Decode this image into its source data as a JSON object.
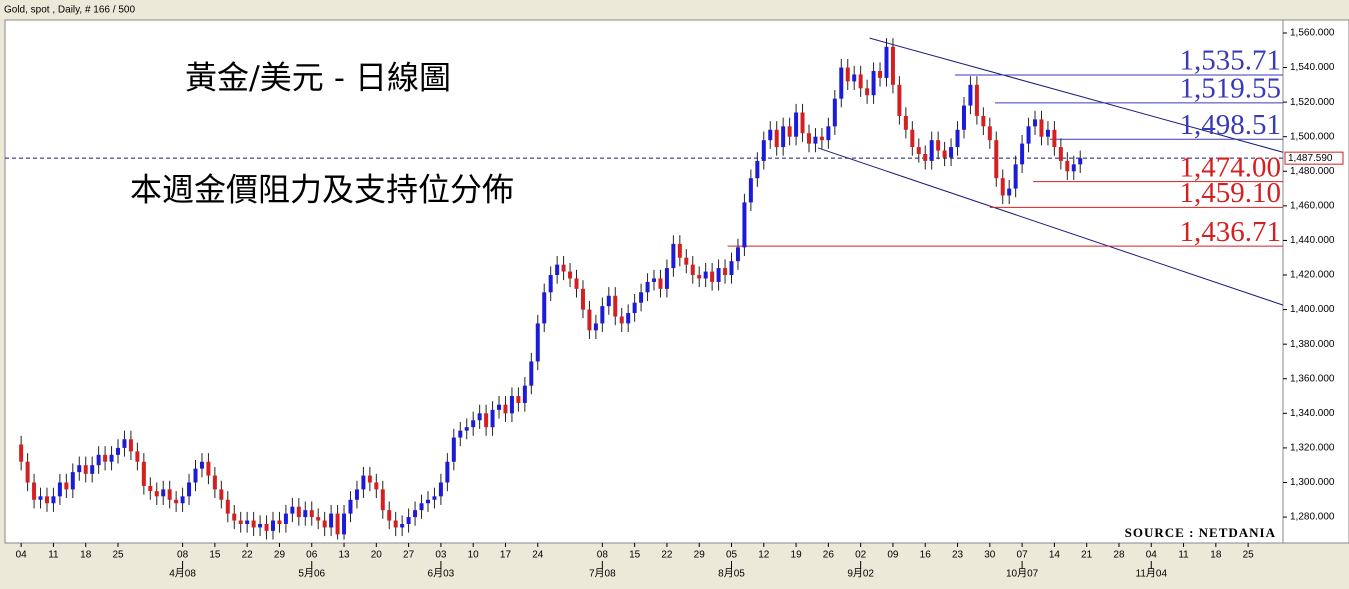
{
  "chart_data": {
    "type": "candlestick",
    "header": "Gold, spot , Daily, # 166 / 500",
    "title": "黃金/美元 - 日線圖",
    "subtitle": "本週金價阻力及支持位分佈",
    "source": "SOURCE : NETDANIA",
    "up_color": "#1c1cd8",
    "down_color": "#d42020",
    "xlim": [
      -2.5,
      195.4
    ],
    "ylim": [
      1265,
      1567.5
    ],
    "yticks": [
      {
        "value": 1280,
        "label": "1,280.000"
      },
      {
        "value": 1300,
        "label": "1,300.000"
      },
      {
        "value": 1320,
        "label": "1,320.000"
      },
      {
        "value": 1340,
        "label": "1,340.000"
      },
      {
        "value": 1360,
        "label": "1,360.000"
      },
      {
        "value": 1380,
        "label": "1,380.000"
      },
      {
        "value": 1400,
        "label": "1,400.000"
      },
      {
        "value": 1420,
        "label": "1,420.000"
      },
      {
        "value": 1440,
        "label": "1,440.000"
      },
      {
        "value": 1460,
        "label": "1,460.000"
      },
      {
        "value": 1480,
        "label": "1,480.000"
      },
      {
        "value": 1500,
        "label": "1,500.000"
      },
      {
        "value": 1520,
        "label": "1,520.000"
      },
      {
        "value": 1540,
        "label": "1,540.000"
      },
      {
        "value": 1560,
        "label": "1,560.000"
      }
    ],
    "xticks": [
      {
        "value": 0,
        "label": "04"
      },
      {
        "value": 5,
        "label": "11"
      },
      {
        "value": 10,
        "label": "18"
      },
      {
        "value": 15,
        "label": "25"
      },
      {
        "value": 25,
        "label": "08"
      },
      {
        "value": 30,
        "label": "15"
      },
      {
        "value": 35,
        "label": "22"
      },
      {
        "value": 40,
        "label": "29"
      },
      {
        "value": 45,
        "label": "06"
      },
      {
        "value": 50,
        "label": "13"
      },
      {
        "value": 55,
        "label": "20"
      },
      {
        "value": 60,
        "label": "27"
      },
      {
        "value": 65,
        "label": "03"
      },
      {
        "value": 70,
        "label": "10"
      },
      {
        "value": 75,
        "label": "17"
      },
      {
        "value": 80,
        "label": "24"
      },
      {
        "value": 90,
        "label": "08"
      },
      {
        "value": 95,
        "label": "15"
      },
      {
        "value": 100,
        "label": "22"
      },
      {
        "value": 105,
        "label": "29"
      },
      {
        "value": 110,
        "label": "05"
      },
      {
        "value": 115,
        "label": "12"
      },
      {
        "value": 120,
        "label": "19"
      },
      {
        "value": 125,
        "label": "26"
      },
      {
        "value": 130,
        "label": "02"
      },
      {
        "value": 135,
        "label": "09"
      },
      {
        "value": 140,
        "label": "16"
      },
      {
        "value": 145,
        "label": "23"
      },
      {
        "value": 150,
        "label": "30"
      },
      {
        "value": 155,
        "label": "07"
      },
      {
        "value": 160,
        "label": "14"
      },
      {
        "value": 165,
        "label": "21"
      },
      {
        "value": 170,
        "label": "28"
      },
      {
        "value": 175,
        "label": "04"
      },
      {
        "value": 180,
        "label": "11"
      },
      {
        "value": 185,
        "label": "18"
      },
      {
        "value": 190,
        "label": "25"
      }
    ],
    "month_ticks": [
      {
        "value": 25,
        "label": "4月08"
      },
      {
        "value": 45,
        "label": "5月06"
      },
      {
        "value": 65,
        "label": "6月03"
      },
      {
        "value": 90,
        "label": "7月08"
      },
      {
        "value": 110,
        "label": "8月05"
      },
      {
        "value": 130,
        "label": "9月02"
      },
      {
        "value": 155,
        "label": "10月07"
      },
      {
        "value": 175,
        "label": "11月04"
      }
    ],
    "x": [
      0,
      1,
      2,
      3,
      4,
      5,
      6,
      7,
      8,
      9,
      10,
      11,
      12,
      13,
      14,
      15,
      16,
      17,
      18,
      19,
      20,
      21,
      22,
      23,
      24,
      25,
      26,
      27,
      28,
      29,
      30,
      31,
      32,
      33,
      34,
      35,
      36,
      37,
      38,
      39,
      40,
      41,
      42,
      43,
      44,
      45,
      46,
      47,
      48,
      49,
      50,
      51,
      52,
      53,
      54,
      55,
      56,
      57,
      58,
      59,
      60,
      61,
      62,
      63,
      64,
      65,
      66,
      67,
      68,
      69,
      70,
      71,
      72,
      73,
      74,
      75,
      76,
      77,
      78,
      79,
      80,
      81,
      82,
      83,
      84,
      85,
      86,
      87,
      88,
      89,
      90,
      91,
      92,
      93,
      94,
      95,
      96,
      97,
      98,
      99,
      100,
      101,
      102,
      103,
      104,
      105,
      106,
      107,
      108,
      109,
      110,
      111,
      112,
      113,
      114,
      115,
      116,
      117,
      118,
      119,
      120,
      121,
      122,
      123,
      124,
      125,
      126,
      127,
      128,
      129,
      130,
      131,
      132,
      133,
      134,
      135,
      136,
      137,
      138,
      139,
      140,
      141,
      142,
      143,
      144,
      145,
      146,
      147,
      148,
      149,
      150,
      151,
      152,
      153,
      154,
      155,
      156,
      157,
      158,
      159,
      160,
      161,
      162,
      163,
      164
    ],
    "open": [
      1322,
      1312,
      1300,
      1290,
      1292,
      1288,
      1292,
      1300,
      1296,
      1306,
      1310,
      1305,
      1310,
      1316,
      1312,
      1316,
      1320,
      1325,
      1318,
      1312,
      1298,
      1295,
      1292,
      1296,
      1290,
      1288,
      1292,
      1300,
      1308,
      1312,
      1304,
      1296,
      1290,
      1282,
      1278,
      1276,
      1278,
      1274,
      1276,
      1272,
      1278,
      1276,
      1282,
      1286,
      1280,
      1284,
      1280,
      1278,
      1274,
      1282,
      1270,
      1282,
      1290,
      1296,
      1304,
      1300,
      1296,
      1284,
      1278,
      1274,
      1276,
      1280,
      1284,
      1288,
      1290,
      1292,
      1300,
      1312,
      1326,
      1330,
      1332,
      1336,
      1340,
      1332,
      1342,
      1345,
      1340,
      1350,
      1346,
      1356,
      1370,
      1392,
      1410,
      1420,
      1426,
      1422,
      1418,
      1412,
      1400,
      1388,
      1392,
      1402,
      1408,
      1396,
      1392,
      1398,
      1404,
      1410,
      1416,
      1418,
      1412,
      1424,
      1438,
      1430,
      1426,
      1420,
      1418,
      1422,
      1416,
      1424,
      1420,
      1428,
      1436,
      1462,
      1476,
      1486,
      1498,
      1504,
      1494,
      1506,
      1500,
      1514,
      1502,
      1496,
      1500,
      1498,
      1506,
      1522,
      1540,
      1532,
      1536,
      1528,
      1524,
      1538,
      1534,
      1552,
      1530,
      1512,
      1504,
      1494,
      1490,
      1486,
      1498,
      1492,
      1488,
      1494,
      1504,
      1518,
      1530,
      1512,
      1506,
      1498,
      1476,
      1466,
      1470,
      1484,
      1496,
      1506,
      1510,
      1500,
      1504,
      1494,
      1486,
      1480,
      1484
    ],
    "high": [
      1327,
      1317,
      1305,
      1297,
      1297,
      1297,
      1305,
      1305,
      1311,
      1315,
      1315,
      1315,
      1321,
      1321,
      1321,
      1325,
      1330,
      1330,
      1323,
      1317,
      1303,
      1300,
      1301,
      1301,
      1295,
      1297,
      1305,
      1313,
      1317,
      1317,
      1309,
      1301,
      1295,
      1287,
      1283,
      1283,
      1283,
      1281,
      1281,
      1283,
      1283,
      1287,
      1291,
      1291,
      1289,
      1289,
      1285,
      1283,
      1287,
      1287,
      1287,
      1295,
      1301,
      1309,
      1309,
      1305,
      1301,
      1289,
      1283,
      1281,
      1285,
      1289,
      1293,
      1295,
      1297,
      1305,
      1317,
      1331,
      1335,
      1337,
      1341,
      1345,
      1345,
      1347,
      1350,
      1350,
      1355,
      1355,
      1361,
      1375,
      1397,
      1415,
      1425,
      1431,
      1431,
      1427,
      1423,
      1417,
      1405,
      1397,
      1407,
      1413,
      1413,
      1401,
      1403,
      1409,
      1415,
      1421,
      1423,
      1423,
      1429,
      1443,
      1443,
      1435,
      1431,
      1425,
      1427,
      1427,
      1429,
      1429,
      1433,
      1441,
      1467,
      1481,
      1491,
      1503,
      1509,
      1509,
      1511,
      1511,
      1519,
      1519,
      1507,
      1505,
      1505,
      1511,
      1527,
      1545,
      1545,
      1541,
      1541,
      1533,
      1543,
      1543,
      1557,
      1557,
      1535,
      1517,
      1509,
      1499,
      1495,
      1503,
      1503,
      1497,
      1499,
      1509,
      1523,
      1535,
      1535,
      1517,
      1511,
      1503,
      1481,
      1475,
      1489,
      1501,
      1511,
      1515,
      1515,
      1509,
      1509,
      1499,
      1491,
      1489,
      1492
    ],
    "low": [
      1307,
      1295,
      1285,
      1285,
      1283,
      1283,
      1287,
      1291,
      1291,
      1301,
      1300,
      1300,
      1305,
      1307,
      1307,
      1311,
      1315,
      1313,
      1307,
      1293,
      1290,
      1287,
      1287,
      1285,
      1283,
      1283,
      1287,
      1295,
      1303,
      1299,
      1291,
      1285,
      1277,
      1273,
      1271,
      1271,
      1269,
      1269,
      1267,
      1267,
      1271,
      1271,
      1277,
      1275,
      1275,
      1275,
      1273,
      1269,
      1269,
      1267,
      1267,
      1277,
      1285,
      1291,
      1295,
      1291,
      1279,
      1273,
      1269,
      1269,
      1271,
      1275,
      1279,
      1283,
      1285,
      1287,
      1295,
      1307,
      1321,
      1325,
      1327,
      1331,
      1327,
      1327,
      1337,
      1335,
      1335,
      1341,
      1341,
      1351,
      1365,
      1387,
      1405,
      1415,
      1417,
      1413,
      1407,
      1395,
      1383,
      1383,
      1387,
      1397,
      1391,
      1387,
      1387,
      1393,
      1399,
      1405,
      1411,
      1407,
      1407,
      1419,
      1425,
      1421,
      1415,
      1413,
      1413,
      1411,
      1411,
      1415,
      1415,
      1423,
      1431,
      1457,
      1471,
      1481,
      1493,
      1489,
      1489,
      1495,
      1495,
      1497,
      1491,
      1491,
      1493,
      1493,
      1501,
      1517,
      1527,
      1527,
      1523,
      1519,
      1519,
      1529,
      1529,
      1525,
      1507,
      1499,
      1489,
      1485,
      1481,
      1481,
      1487,
      1483,
      1483,
      1489,
      1499,
      1513,
      1507,
      1501,
      1493,
      1471,
      1461,
      1461,
      1465,
      1479,
      1491,
      1501,
      1495,
      1495,
      1489,
      1481,
      1475,
      1475,
      1479
    ],
    "close": [
      1312,
      1300,
      1290,
      1292,
      1288,
      1292,
      1300,
      1296,
      1306,
      1310,
      1305,
      1310,
      1316,
      1312,
      1316,
      1320,
      1325,
      1318,
      1312,
      1298,
      1295,
      1292,
      1296,
      1290,
      1288,
      1292,
      1300,
      1308,
      1312,
      1304,
      1296,
      1290,
      1282,
      1278,
      1276,
      1278,
      1274,
      1276,
      1272,
      1278,
      1276,
      1282,
      1286,
      1280,
      1284,
      1280,
      1278,
      1274,
      1282,
      1270,
      1282,
      1290,
      1296,
      1304,
      1300,
      1296,
      1284,
      1278,
      1274,
      1276,
      1280,
      1284,
      1288,
      1290,
      1292,
      1300,
      1312,
      1326,
      1330,
      1332,
      1336,
      1340,
      1332,
      1342,
      1345,
      1340,
      1350,
      1346,
      1356,
      1370,
      1392,
      1410,
      1420,
      1426,
      1422,
      1418,
      1412,
      1400,
      1388,
      1392,
      1402,
      1408,
      1396,
      1392,
      1398,
      1404,
      1410,
      1416,
      1418,
      1412,
      1424,
      1438,
      1430,
      1426,
      1420,
      1418,
      1422,
      1416,
      1424,
      1420,
      1428,
      1436,
      1462,
      1476,
      1486,
      1498,
      1504,
      1494,
      1506,
      1500,
      1514,
      1502,
      1496,
      1500,
      1498,
      1506,
      1522,
      1540,
      1532,
      1536,
      1528,
      1524,
      1538,
      1534,
      1552,
      1530,
      1512,
      1504,
      1494,
      1490,
      1486,
      1498,
      1492,
      1488,
      1494,
      1504,
      1518,
      1530,
      1512,
      1506,
      1498,
      1476,
      1466,
      1470,
      1484,
      1496,
      1506,
      1510,
      1500,
      1504,
      1494,
      1486,
      1480,
      1484,
      1487.59
    ],
    "last_price": {
      "value": 1487.59,
      "label": "1,487.590"
    },
    "levels": [
      {
        "value": 1535.71,
        "label": "1,535.71",
        "color": "#3a3ab8",
        "x_start": 144.6
      },
      {
        "value": 1519.55,
        "label": "1,519.55",
        "color": "#3a3ab8",
        "x_start": 150.8
      },
      {
        "value": 1498.51,
        "label": "1,498.51",
        "color": "#3a3ab8",
        "x_start": 159.3
      },
      {
        "value": 1474.0,
        "label": "1,474.00",
        "color": "#d42020",
        "x_start": 156.7
      },
      {
        "value": 1459.1,
        "label": "1,459.10",
        "color": "#d42020",
        "x_start": 150
      },
      {
        "value": 1436.71,
        "label": "1,436.71",
        "color": "#d42020",
        "x_start": 109.4
      }
    ],
    "trendlines": [
      {
        "x": [
          131.4,
          195.4
        ],
        "y": [
          1557,
          1491
        ],
        "color": "#1a1a80"
      },
      {
        "x": [
          123.4,
          195.4
        ],
        "y": [
          1493.5,
          1402.6
        ],
        "color": "#1a1a80"
      }
    ]
  }
}
